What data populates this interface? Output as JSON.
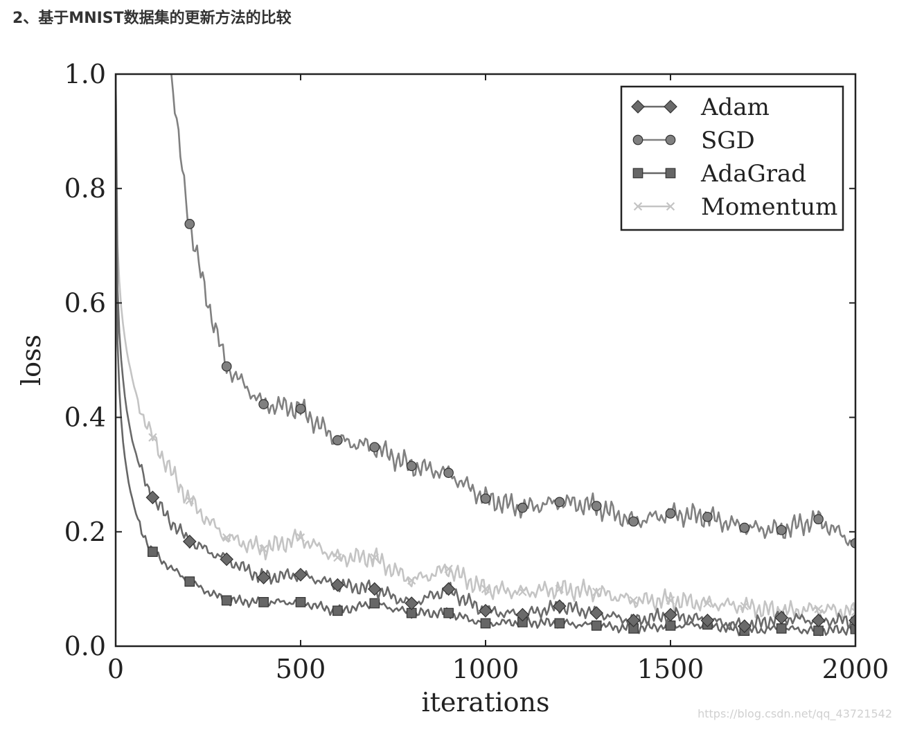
{
  "page": {
    "heading": "2、基于MNIST数据集的更新方法的比较",
    "watermark": "https://blog.csdn.net/qq_43721542"
  },
  "chart_data": {
    "type": "line",
    "xlabel": "iterations",
    "ylabel": "loss",
    "xlim": [
      0,
      2000
    ],
    "ylim": [
      0.0,
      1.0
    ],
    "xticks": [
      "0",
      "500",
      "1000",
      "1500",
      "2000"
    ],
    "yticks": [
      "0.0",
      "0.2",
      "0.4",
      "0.6",
      "0.8",
      "1.0"
    ],
    "legend_position": "top-right",
    "grid": false,
    "series": [
      {
        "name": "Adam",
        "marker": "diamond",
        "color": "#6a6a6a",
        "x": [
          0,
          100,
          200,
          300,
          400,
          500,
          600,
          700,
          800,
          900,
          1000,
          1100,
          1200,
          1300,
          1400,
          1500,
          1600,
          1700,
          1800,
          1900,
          2000
        ],
        "values": [
          1.0,
          0.26,
          0.183,
          0.152,
          0.12,
          0.125,
          0.107,
          0.1,
          0.075,
          0.1,
          0.062,
          0.055,
          0.07,
          0.058,
          0.045,
          0.055,
          0.045,
          0.035,
          0.05,
          0.045,
          0.045
        ]
      },
      {
        "name": "SGD",
        "marker": "circle",
        "color": "#808080",
        "x": [
          150,
          200,
          300,
          400,
          500,
          600,
          700,
          800,
          900,
          1000,
          1100,
          1200,
          1300,
          1400,
          1500,
          1600,
          1700,
          1800,
          1900,
          2000
        ],
        "values": [
          1.0,
          0.738,
          0.489,
          0.423,
          0.415,
          0.36,
          0.348,
          0.315,
          0.303,
          0.258,
          0.242,
          0.252,
          0.245,
          0.218,
          0.232,
          0.226,
          0.207,
          0.203,
          0.222,
          0.18
        ]
      },
      {
        "name": "AdaGrad",
        "marker": "square",
        "color": "#666666",
        "x": [
          0,
          100,
          200,
          300,
          400,
          500,
          600,
          700,
          800,
          900,
          1000,
          1100,
          1200,
          1300,
          1400,
          1500,
          1600,
          1700,
          1800,
          1900,
          2000
        ],
        "values": [
          1.0,
          0.165,
          0.113,
          0.08,
          0.077,
          0.077,
          0.062,
          0.075,
          0.058,
          0.058,
          0.04,
          0.042,
          0.04,
          0.036,
          0.031,
          0.036,
          0.038,
          0.027,
          0.031,
          0.027,
          0.03
        ]
      },
      {
        "name": "Momentum",
        "marker": "x",
        "color": "#c4c4c4",
        "x": [
          0,
          100,
          200,
          300,
          400,
          500,
          600,
          700,
          800,
          900,
          1000,
          1100,
          1200,
          1300,
          1400,
          1500,
          1600,
          1700,
          1800,
          1900,
          2000
        ],
        "values": [
          1.0,
          0.365,
          0.255,
          0.19,
          0.17,
          0.19,
          0.155,
          0.155,
          0.115,
          0.135,
          0.1,
          0.095,
          0.1,
          0.095,
          0.08,
          0.08,
          0.075,
          0.07,
          0.06,
          0.065,
          0.06
        ]
      }
    ]
  }
}
